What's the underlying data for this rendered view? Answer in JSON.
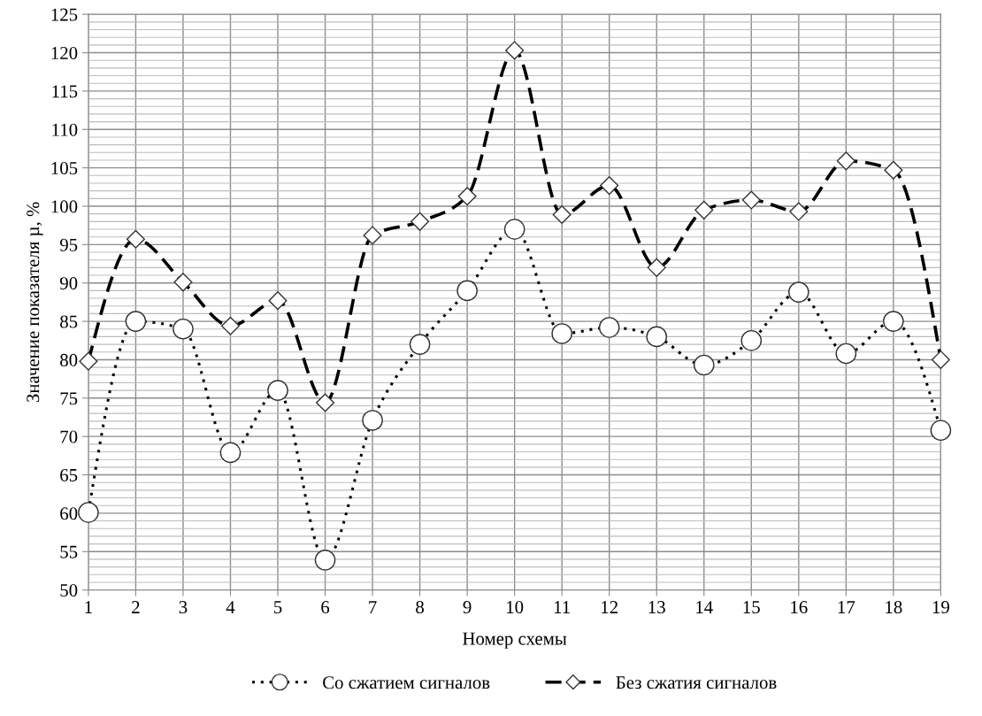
{
  "chart_data": {
    "type": "line",
    "xlabel": "Номер схемы",
    "ylabel": "Значение показателя µ, %",
    "categories": [
      "1",
      "2",
      "3",
      "4",
      "5",
      "6",
      "7",
      "8",
      "9",
      "10",
      "11",
      "12",
      "13",
      "14",
      "15",
      "16",
      "17",
      "18",
      "19"
    ],
    "series": [
      {
        "name": "Со сжатием сигналов",
        "color": "#000000",
        "marker": "circle",
        "line_style": "dotted",
        "values": [
          60.1,
          85,
          84,
          67.9,
          76,
          53.9,
          72.1,
          82,
          89,
          97,
          83.4,
          84.2,
          83,
          79.3,
          82.5,
          88.8,
          80.8,
          85,
          70.8
        ]
      },
      {
        "name": "Без сжатия сигналов",
        "color": "#000000",
        "marker": "diamond",
        "line_style": "dashed",
        "values": [
          79.8,
          95.7,
          90.1,
          84.4,
          87.7,
          74.4,
          96.2,
          98,
          101.3,
          120.3,
          98.9,
          102.7,
          92,
          99.5,
          100.8,
          99.3,
          105.9,
          104.7,
          80
        ]
      }
    ],
    "ylim": [
      50,
      125
    ],
    "yticks": [
      50,
      55,
      60,
      65,
      70,
      75,
      80,
      85,
      90,
      95,
      100,
      105,
      110,
      115,
      120,
      125
    ],
    "grid": true,
    "legend": "bottom"
  }
}
